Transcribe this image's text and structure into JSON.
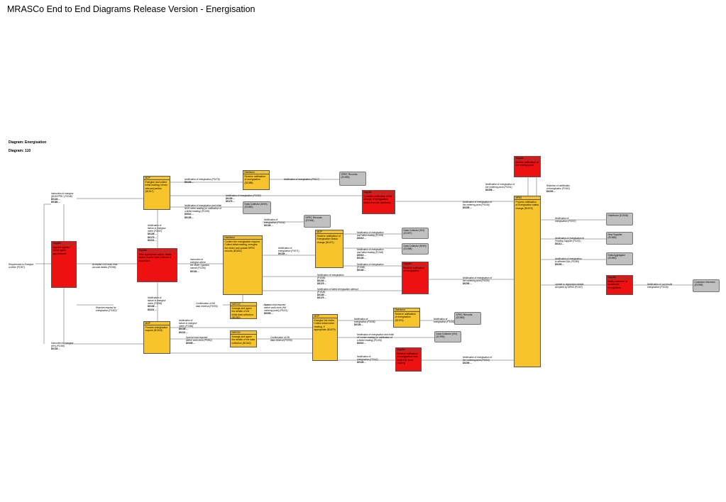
{
  "title": "MRASCo End to End Diagrams Release Version - Energisation",
  "diagram_label": "Diagram: Energisation",
  "diagram_number": "Diagram: 110",
  "boxes": [
    {
      "id": "s-mam",
      "cls": "r",
      "role": "Supplier",
      "text": "Appoint agents / check agent appointment"
    },
    {
      "id": "mop-a",
      "cls": "y",
      "role": "MOP",
      "text": "Energise and collect initial reading; inform relevant parties (B1317)"
    },
    {
      "id": "sup-b",
      "cls": "r",
      "role": "Supplier",
      "text": "Take appropriate action, obtain and/or lead to Data Collector if requested"
    },
    {
      "id": "mop-b",
      "cls": "y",
      "role": "MOP",
      "text": "Process energisation request (B1318)"
    },
    {
      "id": "dist-a",
      "cls": "y",
      "role": "Distributor",
      "text": "Receive notification of energisation (B1388)"
    },
    {
      "id": "spr-1",
      "cls": "g",
      "role": "",
      "text": "SPRC Records (E1983)"
    },
    {
      "id": "dc-1",
      "cls": "g",
      "role": "",
      "text": "Data Collector (NHH) (E1982)"
    },
    {
      "id": "spr-2",
      "cls": "g",
      "role": "",
      "text": "SPRC Records (E1984)"
    },
    {
      "id": "dist-b",
      "cls": "y",
      "role": "Distributor",
      "text": "Confirm the energisation request. Collect initial reading, energise the meter and update SPRC records (B1631)"
    },
    {
      "id": "dc-a",
      "cls": "y",
      "role": "NHH DC",
      "text": "Arrange and agree the details of the initial data collection (B1330)"
    },
    {
      "id": "dc-b",
      "cls": "y",
      "role": "NHH DC",
      "text": "Arrange and agree the details of the data collection (B1340)"
    },
    {
      "id": "sup-c",
      "cls": "r",
      "role": "Supplier",
      "text": "Consider notification of the change of energisation status from the distributor"
    },
    {
      "id": "mop-c",
      "cls": "y",
      "role": "MOP",
      "text": "Receive notification of Energisation Status change (B1471)"
    },
    {
      "id": "dc-2",
      "cls": "g",
      "role": "",
      "text": "Data Collector (HH) (E1997)"
    },
    {
      "id": "dc-3",
      "cls": "g",
      "role": "",
      "text": "Data Collector (NHH) (E1998)"
    },
    {
      "id": "sup-d",
      "cls": "r",
      "role": "Supplier",
      "text": "Receive notification of energisation"
    },
    {
      "id": "mop-d",
      "cls": "y",
      "role": "MOP",
      "text": "Energise the meter. Collect initial meter reading, if appropriate (B1579)"
    },
    {
      "id": "dist-c",
      "cls": "y",
      "role": "Distributor",
      "text": "Receive notification of energisation (B1974)"
    },
    {
      "id": "spr-3",
      "cls": "g",
      "role": "",
      "text": "SPRC Records (E1983)"
    },
    {
      "id": "dc-4",
      "cls": "g",
      "role": "",
      "text": "Data Collector (HH) (E1999)"
    },
    {
      "id": "sup-e",
      "cls": "r",
      "role": "Supplier",
      "text": "Receive notification of energisation and initial HH meter reading"
    },
    {
      "id": "sup-f",
      "cls": "r",
      "role": "Supplier",
      "text": "Monitor notification of the reading point"
    },
    {
      "id": "mpas",
      "cls": "y",
      "role": "MPAS",
      "text": "Process notification of Energisation status change (B1575)"
    },
    {
      "id": "dist-d",
      "cls": "g",
      "role": "",
      "text": "Distributor (E1948)"
    },
    {
      "id": "ns",
      "cls": "g",
      "role": "",
      "text": "New Supplier (E1965)"
    },
    {
      "id": "ds",
      "cls": "g",
      "role": "",
      "text": "Distributor (E1964)"
    },
    {
      "id": "da",
      "cls": "g",
      "role": "",
      "text": "Data Aggregator (E1960)"
    },
    {
      "id": "sup-g",
      "cls": "r",
      "role": "Supplier",
      "text": "Notify customer of successful energisation"
    },
    {
      "id": "cust",
      "cls": "g",
      "role": "",
      "text": "Customer Informed (E1995)"
    }
  ],
  "labels": [
    {
      "id": "l1",
      "text": "Instruction to energise\n(NHH/FPRC (P1048)",
      "code": "D0134 ...\nD0160 ..."
    },
    {
      "id": "l2",
      "text": "Requirement to Energise\na meter (P1367)",
      "code": ""
    },
    {
      "id": "l3",
      "text": "Accepted CoS read, final\naccount details (P0396)",
      "code": ""
    },
    {
      "id": "l4",
      "text": "Rejected request for\nenergisation (P1452)",
      "code": ""
    },
    {
      "id": "l5",
      "text": "Instruction to energise\n(HH) (P1049)",
      "code": "D0134 ..."
    },
    {
      "id": "l6",
      "text": "Notification of energisation (P1078)",
      "code": "D0139 ..."
    },
    {
      "id": "l7",
      "text": "Notification of energisation (P1080)",
      "code": "D0139 ...\nD0179 ..."
    },
    {
      "id": "l8",
      "text": "Notification of energisation (P0417)",
      "code": ""
    },
    {
      "id": "l9",
      "text": "Notification of energisation and initial\nNHH meter reading (or notification of\na failed reading) (P1035)",
      "code": "D0010 ...\nD0139 ..."
    },
    {
      "id": "l10",
      "text": "Notification of\nenergisation (P1044)",
      "code": "D0139 ..."
    },
    {
      "id": "l11",
      "text": "Notification of\nfailure to energise\nmeter (P1357)",
      "code": "D0139 ...\nD0179 ...\nD0221 ..."
    },
    {
      "id": "l12",
      "text": "Instruction to\nenergise where\nthe Meter Operator\ncannot (P1355)",
      "code": "D0134 ..."
    },
    {
      "id": "l13",
      "text": "Notification of\nenergisation (P1071)",
      "code": "D0139 ..."
    },
    {
      "id": "l14",
      "text": "Notification of energisation\nand initial reading (P1035)",
      "code": "D0010 ..."
    },
    {
      "id": "l15",
      "text": "Notification of energisation\nand initial reading (P1046)",
      "code": "D0010 ...\nD0139 ..."
    },
    {
      "id": "l16",
      "text": "Notification of energisation\n(P1066)",
      "code": "D0139 ..."
    },
    {
      "id": "l17",
      "text": "Notification of energisation\n(P1036)",
      "code": "D0139 ...\nD0179 ..."
    },
    {
      "id": "l18",
      "text": "Notification of failed energisation attempt\n(P1026)",
      "code": "D0139 ...\nD0179 ..."
    },
    {
      "id": "l19",
      "text": "Confirmation of NH\ndata retrieval (P1055)",
      "code": ""
    },
    {
      "id": "l20",
      "text": "Special read required\nbefore work done (NH\nmetering point) (P0221)",
      "code": "D0005 ..."
    },
    {
      "id": "l21",
      "text": "Notification of\nfailure to energise\nmeter (P1356)",
      "code": "D0139 ...\nD0221 ..."
    },
    {
      "id": "l22",
      "text": "Notification of\nfailure to energise\nmeter (P1356)",
      "code": "D0139 ...\nD0221 ..."
    },
    {
      "id": "l23",
      "text": "Special read required\nbefore work done (P0352)",
      "code": "D0005 ..."
    },
    {
      "id": "l24",
      "text": "Confirmation of HH\ndata retrieval (P1056)",
      "code": ""
    },
    {
      "id": "l25",
      "text": "Notification of\nenergisation (P1058)",
      "code": "D0139 ..."
    },
    {
      "id": "l26",
      "text": "Notification of\nenergisation (P1193)",
      "code": ""
    },
    {
      "id": "l27",
      "text": "Notification of energisation and initial\nHH meter reading (or notification of\na failed reading) (P1033)",
      "code": "D0010 ..."
    },
    {
      "id": "l28",
      "text": "Notification of\nenergisation (P1042)",
      "code": "D0139 ..."
    },
    {
      "id": "l29",
      "text": "Notification of energisation of\nthe metering point (P1041)",
      "code": "D0205 ..."
    },
    {
      "id": "l30",
      "text": "Notification of energisation of\nthe metering point (P1049)",
      "code": "D0205 ..."
    },
    {
      "id": "l31",
      "text": "Notification of energisation of\nthe metering point (P1050)",
      "code": "D0205 ..."
    },
    {
      "id": "l32",
      "text": "Notification of energisation of\nthe metering point (P1054)",
      "code": "D0205 ..."
    },
    {
      "id": "l33",
      "text": "Rejection of notification\nof energisation (P1041)",
      "code": "D0203 ..."
    },
    {
      "id": "l34",
      "text": "Notification of\nenergisation (P1057)",
      "code": ""
    },
    {
      "id": "l35",
      "text": "Notification of energisation to\nPending Supplier (P1201)",
      "code": "D0213 ..."
    },
    {
      "id": "l36",
      "text": "Notification of energisation\nto affected DAs (P1059)",
      "code": "D0209 ..."
    },
    {
      "id": "l37",
      "text": "Update to registration details\naccepted by MPAS (P1347)",
      "code": ""
    },
    {
      "id": "l38",
      "text": "Notification of successful\nenergisation (P1036)",
      "code": ""
    }
  ]
}
